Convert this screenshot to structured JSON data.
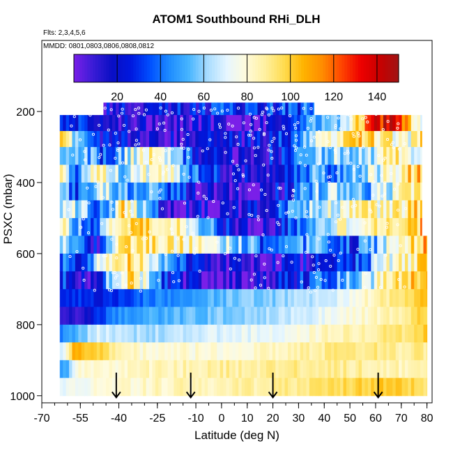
{
  "chart_data": {
    "type": "heatmap",
    "title": "ATOM1 Southbound RHi_DLH",
    "flights_note": "Flts: 2,3,4,5,6",
    "dates_note": "MMDD: 0801,0803,0806,0808,0812",
    "xlabel": "Latitude (deg N)",
    "ylabel": "PSXC (mbar)",
    "xlim": [
      -70,
      82
    ],
    "ylim": [
      1020,
      0
    ],
    "x_ticks": [
      -70,
      -55,
      -40,
      -25,
      -10,
      0,
      10,
      20,
      30,
      40,
      50,
      60,
      70,
      80
    ],
    "x_tick_labels": [
      "-70",
      "-55",
      "-40",
      "-25",
      "-10",
      "0",
      "10",
      "20",
      "30",
      "40",
      "50",
      "60",
      "70",
      "80"
    ],
    "y_ticks": [
      200,
      400,
      600,
      800,
      1000
    ],
    "y_tick_labels": [
      "200",
      "400",
      "600",
      "800",
      "1000"
    ],
    "colorbar": {
      "range": [
        0,
        150
      ],
      "ticks": [
        20,
        40,
        60,
        80,
        100,
        120,
        140
      ],
      "tick_labels": [
        "20",
        "40",
        "60",
        "80",
        "100",
        "120",
        "140"
      ],
      "colors": [
        "#7a1fe8",
        "#3a1cd6",
        "#0a0fc4",
        "#0018e0",
        "#0050ff",
        "#1e8cff",
        "#46b4ff",
        "#a8dcff",
        "#e6f6ff",
        "#fffbdc",
        "#fff0a0",
        "#ffdc50",
        "#ffb400",
        "#ff8c00",
        "#ff4600",
        "#ee0000",
        "#c80000",
        "#a01414"
      ]
    },
    "takeoff_markers_lat": [
      -41,
      -12,
      20,
      61
    ],
    "layers": [
      {
        "p_top": 175,
        "p_bot": 210,
        "lat_start": -46,
        "lat_end": 36,
        "nodes": [
          [
            -46,
            20
          ],
          [
            -30,
            18
          ],
          [
            -10,
            25
          ],
          [
            5,
            30
          ],
          [
            20,
            28
          ],
          [
            30,
            35
          ],
          [
            36,
            40
          ]
        ]
      },
      {
        "p_top": 210,
        "p_bot": 255,
        "lat_start": -63,
        "lat_end": 78,
        "nodes": [
          [
            -63,
            40
          ],
          [
            -55,
            25
          ],
          [
            -45,
            15
          ],
          [
            -35,
            20
          ],
          [
            -20,
            10
          ],
          [
            -5,
            12
          ],
          [
            10,
            8
          ],
          [
            25,
            20
          ],
          [
            35,
            55
          ],
          [
            45,
            60
          ],
          [
            52,
            90
          ],
          [
            58,
            130
          ],
          [
            66,
            138
          ],
          [
            72,
            120
          ],
          [
            78,
            60
          ]
        ]
      },
      {
        "p_top": 255,
        "p_bot": 300,
        "lat_start": -63,
        "lat_end": 78,
        "nodes": [
          [
            -63,
            95
          ],
          [
            -58,
            70
          ],
          [
            -52,
            40
          ],
          [
            -45,
            20
          ],
          [
            -35,
            15
          ],
          [
            -20,
            12
          ],
          [
            -5,
            18
          ],
          [
            10,
            15
          ],
          [
            25,
            30
          ],
          [
            35,
            60
          ],
          [
            45,
            80
          ],
          [
            55,
            100
          ],
          [
            65,
            85
          ],
          [
            72,
            70
          ],
          [
            78,
            100
          ]
        ]
      },
      {
        "p_top": 300,
        "p_bot": 350,
        "lat_start": -63,
        "lat_end": 78,
        "nodes": [
          [
            -63,
            45
          ],
          [
            -55,
            60
          ],
          [
            -45,
            30
          ],
          [
            -35,
            70
          ],
          [
            -25,
            90
          ],
          [
            -15,
            40
          ],
          [
            -5,
            15
          ],
          [
            10,
            10
          ],
          [
            25,
            25
          ],
          [
            35,
            50
          ],
          [
            45,
            70
          ],
          [
            55,
            55
          ],
          [
            65,
            90
          ],
          [
            72,
            80
          ],
          [
            78,
            60
          ]
        ]
      },
      {
        "p_top": 350,
        "p_bot": 400,
        "lat_start": -63,
        "lat_end": 78,
        "nodes": [
          [
            -63,
            80
          ],
          [
            -55,
            40
          ],
          [
            -48,
            90
          ],
          [
            -40,
            60
          ],
          [
            -30,
            75
          ],
          [
            -20,
            85
          ],
          [
            -10,
            40
          ],
          [
            0,
            20
          ],
          [
            15,
            12
          ],
          [
            25,
            35
          ],
          [
            35,
            50
          ],
          [
            45,
            45
          ],
          [
            55,
            60
          ],
          [
            65,
            80
          ],
          [
            72,
            95
          ],
          [
            78,
            100
          ]
        ]
      },
      {
        "p_top": 400,
        "p_bot": 450,
        "lat_start": -63,
        "lat_end": 78,
        "nodes": [
          [
            -63,
            60
          ],
          [
            -55,
            30
          ],
          [
            -45,
            70
          ],
          [
            -35,
            40
          ],
          [
            -25,
            55
          ],
          [
            -15,
            25
          ],
          [
            -5,
            10
          ],
          [
            10,
            8
          ],
          [
            25,
            20
          ],
          [
            35,
            55
          ],
          [
            45,
            60
          ],
          [
            55,
            50
          ],
          [
            65,
            70
          ],
          [
            72,
            85
          ],
          [
            78,
            100
          ]
        ]
      },
      {
        "p_top": 450,
        "p_bot": 500,
        "lat_start": -63,
        "lat_end": 78,
        "nodes": [
          [
            -63,
            55
          ],
          [
            -55,
            70
          ],
          [
            -45,
            30
          ],
          [
            -38,
            95
          ],
          [
            -30,
            60
          ],
          [
            -20,
            10
          ],
          [
            -10,
            15
          ],
          [
            5,
            12
          ],
          [
            20,
            30
          ],
          [
            35,
            60
          ],
          [
            45,
            75
          ],
          [
            55,
            80
          ],
          [
            65,
            85
          ],
          [
            72,
            90
          ],
          [
            78,
            105
          ]
        ]
      },
      {
        "p_top": 500,
        "p_bot": 550,
        "lat_start": -63,
        "lat_end": 78,
        "nodes": [
          [
            -63,
            85
          ],
          [
            -55,
            45
          ],
          [
            -48,
            40
          ],
          [
            -42,
            90
          ],
          [
            -32,
            100
          ],
          [
            -20,
            95
          ],
          [
            -8,
            55
          ],
          [
            5,
            15
          ],
          [
            15,
            8
          ],
          [
            25,
            25
          ],
          [
            35,
            60
          ],
          [
            45,
            75
          ],
          [
            55,
            80
          ],
          [
            65,
            82
          ],
          [
            72,
            90
          ],
          [
            78,
            108
          ]
        ]
      },
      {
        "p_top": 550,
        "p_bot": 600,
        "lat_start": -63,
        "lat_end": 80,
        "nodes": [
          [
            -63,
            70
          ],
          [
            -55,
            30
          ],
          [
            -48,
            20
          ],
          [
            -40,
            85
          ],
          [
            -30,
            90
          ],
          [
            -20,
            88
          ],
          [
            -10,
            85
          ],
          [
            0,
            70
          ],
          [
            10,
            50
          ],
          [
            20,
            30
          ],
          [
            30,
            40
          ],
          [
            38,
            55
          ],
          [
            45,
            40
          ],
          [
            52,
            30
          ],
          [
            60,
            55
          ],
          [
            66,
            80
          ],
          [
            72,
            85
          ],
          [
            80,
            110
          ]
        ]
      },
      {
        "p_top": 600,
        "p_bot": 650,
        "lat_start": -63,
        "lat_end": 80,
        "nodes": [
          [
            -63,
            40
          ],
          [
            -55,
            20
          ],
          [
            -48,
            70
          ],
          [
            -42,
            95
          ],
          [
            -32,
            90
          ],
          [
            -22,
            60
          ],
          [
            -12,
            25
          ],
          [
            0,
            12
          ],
          [
            15,
            10
          ],
          [
            25,
            15
          ],
          [
            35,
            20
          ],
          [
            45,
            30
          ],
          [
            55,
            35
          ],
          [
            62,
            70
          ],
          [
            70,
            80
          ],
          [
            80,
            105
          ]
        ]
      },
      {
        "p_top": 650,
        "p_bot": 700,
        "lat_start": -63,
        "lat_end": 80,
        "nodes": [
          [
            -63,
            40
          ],
          [
            -55,
            15
          ],
          [
            -48,
            20
          ],
          [
            -42,
            75
          ],
          [
            -35,
            90
          ],
          [
            -28,
            60
          ],
          [
            -20,
            20
          ],
          [
            -10,
            12
          ],
          [
            0,
            10
          ],
          [
            15,
            15
          ],
          [
            25,
            20
          ],
          [
            35,
            35
          ],
          [
            45,
            50
          ],
          [
            55,
            60
          ],
          [
            62,
            85
          ],
          [
            70,
            95
          ],
          [
            80,
            110
          ]
        ]
      },
      {
        "p_top": 700,
        "p_bot": 750,
        "lat_start": -63,
        "lat_end": 80,
        "nodes": [
          [
            -63,
            25
          ],
          [
            -55,
            30
          ],
          [
            -48,
            25
          ],
          [
            -40,
            30
          ],
          [
            -30,
            40
          ],
          [
            -20,
            45
          ],
          [
            -10,
            50
          ],
          [
            0,
            55
          ],
          [
            15,
            58
          ],
          [
            25,
            60
          ],
          [
            35,
            65
          ],
          [
            45,
            70
          ],
          [
            55,
            80
          ],
          [
            62,
            88
          ],
          [
            70,
            92
          ],
          [
            80,
            105
          ]
        ]
      },
      {
        "p_top": 750,
        "p_bot": 800,
        "lat_start": -63,
        "lat_end": 80,
        "nodes": [
          [
            -63,
            12
          ],
          [
            -55,
            10
          ],
          [
            -48,
            30
          ],
          [
            -40,
            45
          ],
          [
            -30,
            50
          ],
          [
            -20,
            52
          ],
          [
            -10,
            55
          ],
          [
            0,
            58
          ],
          [
            15,
            62
          ],
          [
            25,
            65
          ],
          [
            35,
            70
          ],
          [
            45,
            75
          ],
          [
            55,
            80
          ],
          [
            62,
            85
          ],
          [
            70,
            88
          ],
          [
            80,
            100
          ]
        ]
      },
      {
        "p_top": 800,
        "p_bot": 850,
        "lat_start": -63,
        "lat_end": 80,
        "nodes": [
          [
            -63,
            40
          ],
          [
            -55,
            55
          ],
          [
            -48,
            70
          ],
          [
            -40,
            65
          ],
          [
            -30,
            62
          ],
          [
            -20,
            65
          ],
          [
            -10,
            68
          ],
          [
            0,
            70
          ],
          [
            15,
            72
          ],
          [
            25,
            75
          ],
          [
            35,
            80
          ],
          [
            45,
            85
          ],
          [
            55,
            88
          ],
          [
            62,
            90
          ],
          [
            70,
            92
          ],
          [
            80,
            100
          ]
        ]
      },
      {
        "p_top": 850,
        "p_bot": 900,
        "lat_start": -63,
        "lat_end": 80,
        "nodes": [
          [
            -63,
            60
          ],
          [
            -58,
            105
          ],
          [
            -48,
            100
          ],
          [
            -40,
            85
          ],
          [
            -30,
            80
          ],
          [
            -20,
            78
          ],
          [
            -10,
            80
          ],
          [
            0,
            80
          ],
          [
            15,
            82
          ],
          [
            25,
            85
          ],
          [
            35,
            88
          ],
          [
            45,
            90
          ],
          [
            55,
            92
          ],
          [
            62,
            90
          ],
          [
            70,
            88
          ],
          [
            80,
            90
          ]
        ]
      },
      {
        "p_top": 900,
        "p_bot": 950,
        "lat_start": -63,
        "lat_end": 80,
        "nodes": [
          [
            -63,
            40
          ],
          [
            -55,
            80
          ],
          [
            -48,
            82
          ],
          [
            -40,
            82
          ],
          [
            -30,
            84
          ],
          [
            -20,
            85
          ],
          [
            -10,
            86
          ],
          [
            0,
            88
          ],
          [
            15,
            88
          ],
          [
            25,
            90
          ],
          [
            35,
            90
          ],
          [
            45,
            90
          ],
          [
            55,
            88
          ],
          [
            62,
            86
          ],
          [
            70,
            85
          ],
          [
            80,
            85
          ]
        ]
      },
      {
        "p_top": 950,
        "p_bot": 1000,
        "lat_start": -63,
        "lat_end": 80,
        "nodes": [
          [
            -63,
            72
          ],
          [
            -55,
            75
          ],
          [
            -48,
            78
          ],
          [
            -40,
            80
          ],
          [
            -30,
            82
          ],
          [
            -20,
            84
          ],
          [
            -10,
            85
          ],
          [
            0,
            86
          ],
          [
            15,
            88
          ],
          [
            25,
            90
          ],
          [
            35,
            92
          ],
          [
            45,
            95
          ],
          [
            55,
            98
          ],
          [
            62,
            100
          ],
          [
            70,
            98
          ],
          [
            80,
            96
          ]
        ]
      }
    ]
  }
}
